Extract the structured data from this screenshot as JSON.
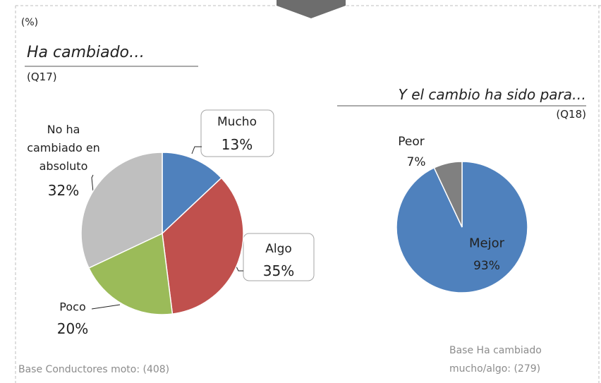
{
  "unit_label": "(%)",
  "chart_data": [
    {
      "type": "pie",
      "title": "Ha cambiado…",
      "subtitle": "(Q17)",
      "categories": [
        "Mucho",
        "Algo",
        "Poco",
        "No ha cambiado en absoluto"
      ],
      "values": [
        13,
        35,
        20,
        32
      ],
      "value_labels": [
        "13%",
        "35%",
        "20%",
        "32%"
      ],
      "colors": [
        "#4f81bd",
        "#c0504d",
        "#9bbb59",
        "#bfbfbf"
      ],
      "note": "Base Conductores moto:  (408)"
    },
    {
      "type": "pie",
      "title": "Y el cambio ha sido para…",
      "subtitle": "(Q18)",
      "categories": [
        "Mejor",
        "Peor"
      ],
      "values": [
        93,
        7
      ],
      "value_labels": [
        "93%",
        "7%"
      ],
      "colors": [
        "#4f81bd",
        "#808080"
      ],
      "note": "Base Ha cambiado mucho/algo:  (279)"
    }
  ]
}
